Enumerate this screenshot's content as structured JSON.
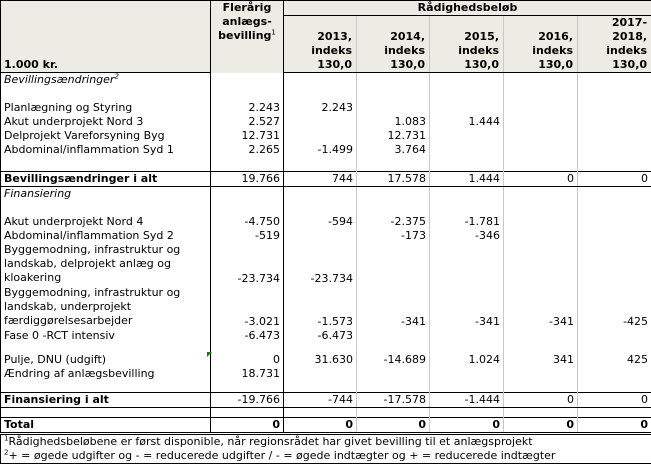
{
  "header": {
    "unit": "1.000 kr.",
    "flerarig_label": "Flerårig anlægs-bevilling",
    "flerarig_sup": "1",
    "group_label": "Rådighedsbeløb",
    "years": [
      "2013, indeks 130,0",
      "2014, indeks 130,0",
      "2015, indeks 130,0",
      "2016, indeks 130,0",
      "2017-2018, indeks 130,0"
    ]
  },
  "sections": {
    "bevillings_title": "Bevillingsændringer",
    "bevillings_sup": "2",
    "finansiering_title": "Finansiering"
  },
  "bevillings_rows": [
    {
      "label": "Planlægning og Styring",
      "values": [
        "2.243",
        "2.243",
        "",
        "",
        "",
        ""
      ]
    },
    {
      "label": "Akut underprojekt Nord 3",
      "values": [
        "2.527",
        "",
        "1.083",
        "1.444",
        "",
        ""
      ]
    },
    {
      "label": "Delprojekt Vareforsyning Byg",
      "values": [
        "12.731",
        "",
        "12.731",
        "",
        "",
        ""
      ]
    },
    {
      "label": "Abdominal/inflammation Syd 1",
      "values": [
        "2.265",
        "-1.499",
        "3.764",
        "",
        "",
        ""
      ]
    }
  ],
  "bevillings_total": {
    "label": "Bevillingsændringer i alt",
    "values": [
      "19.766",
      "744",
      "17.578",
      "1.444",
      "0",
      "0"
    ]
  },
  "finans_rows": [
    {
      "label": "Akut underprojekt Nord 4",
      "values": [
        "-4.750",
        "-594",
        "-2.375",
        "-1.781",
        "",
        ""
      ]
    },
    {
      "label": "Abdominal/inflammation Syd 2",
      "values": [
        "-519",
        "",
        "-173",
        "-346",
        "",
        ""
      ]
    },
    {
      "label": "Byggemodning, infrastruktur og landskab, delprojekt anlæg og kloakering",
      "values": [
        "-23.734",
        "-23.734",
        "",
        "",
        "",
        ""
      ]
    },
    {
      "label": "Byggemodning, infrastruktur og landskab, underprojekt færdiggørelsesarbejder",
      "values": [
        "-3.021",
        "-1.573",
        "-341",
        "-341",
        "-341",
        "-425"
      ]
    },
    {
      "label": "Fase 0 -RCT intensiv",
      "values": [
        "-6.473",
        "-6.473",
        "",
        "",
        "",
        ""
      ]
    },
    {
      "label": "Pulje, DNU (udgift)",
      "values": [
        "0",
        "31.630",
        "-14.689",
        "1.024",
        "341",
        "425"
      ]
    },
    {
      "label": "Ændring af anlægsbevilling",
      "values": [
        "18.731",
        "",
        "",
        "",
        "",
        ""
      ]
    }
  ],
  "finans_total": {
    "label": "Finansiering i alt",
    "values": [
      "-19.766",
      "-744",
      "-17.578",
      "-1.444",
      "0",
      "0"
    ]
  },
  "total": {
    "label": "Total",
    "values": [
      "0",
      "0",
      "0",
      "0",
      "0",
      "0"
    ]
  },
  "footnotes": [
    {
      "sup": "1",
      "text": "Rådighedsbeløbene er først disponible, når regionsrådet har givet bevilling til et anlægsprojekt"
    },
    {
      "sup": "2",
      "text": "+ = øgede udgifter og - = reducerede udgifter / - = øgede indtægter og + = reducerede indtægter"
    }
  ],
  "colors": {
    "header_bg": "#ecebe4",
    "marker": "#1a7a1a"
  }
}
